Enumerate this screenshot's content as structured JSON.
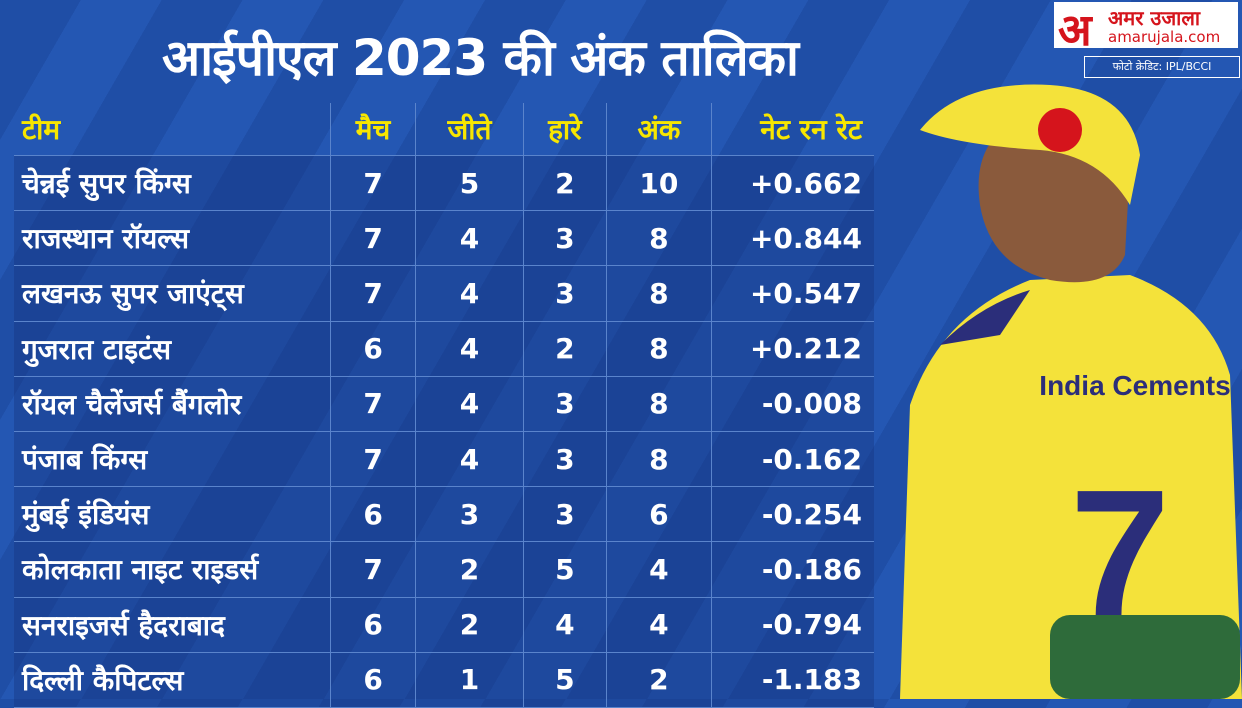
{
  "title": "आईपीएल 2023 की अंक तालिका",
  "logo": {
    "mark": "अ",
    "name": "अमर उजाला",
    "site": "amarujala.com"
  },
  "credit": "फोटो क्रेडिट: IPL/BCCI",
  "photo": {
    "jersey_text": "India Cements",
    "jersey_number": "7"
  },
  "table": {
    "header": [
      "टीम",
      "मैच",
      "जीते",
      "हारे",
      "अंक",
      "नेट रन रेट"
    ],
    "rows": [
      [
        "चेन्नई सुपर किंग्स",
        "7",
        "5",
        "2",
        "10",
        "+0.662"
      ],
      [
        "राजस्थान रॉयल्स",
        "7",
        "4",
        "3",
        "8",
        "+0.844"
      ],
      [
        "लखनऊ सुपर जाएंट्स",
        "7",
        "4",
        "3",
        "8",
        "+0.547"
      ],
      [
        "गुजरात टाइटंस",
        "6",
        "4",
        "2",
        "8",
        "+0.212"
      ],
      [
        "रॉयल चैलेंजर्स बैंगलोर",
        "7",
        "4",
        "3",
        "8",
        "-0.008"
      ],
      [
        "पंजाब किंग्स",
        "7",
        "4",
        "3",
        "8",
        "-0.162"
      ],
      [
        "मुंबई इंडियंस",
        "6",
        "3",
        "3",
        "6",
        "-0.254"
      ],
      [
        "कोलकाता नाइट राइडर्स",
        "7",
        "2",
        "5",
        "4",
        "-0.186"
      ],
      [
        "सनराइजर्स हैदराबाद",
        "6",
        "2",
        "4",
        "4",
        "-0.794"
      ],
      [
        "दिल्ली कैपिटल्स",
        "6",
        "1",
        "5",
        "2",
        "-1.183"
      ]
    ]
  }
}
